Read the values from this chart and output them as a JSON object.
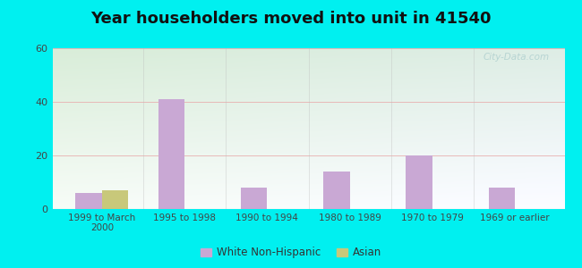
{
  "title": "Year householders moved into unit in 41540",
  "categories": [
    "1999 to March\n2000",
    "1995 to 1998",
    "1990 to 1994",
    "1980 to 1989",
    "1970 to 1979",
    "1969 or earlier"
  ],
  "white_non_hispanic": [
    6,
    41,
    8,
    14,
    20,
    8
  ],
  "asian": [
    7,
    0,
    0,
    0,
    0,
    0
  ],
  "white_color": "#c9a8d4",
  "asian_color": "#c8c87a",
  "ylim": [
    0,
    60
  ],
  "yticks": [
    0,
    20,
    40,
    60
  ],
  "bg_outer": "#00f0f0",
  "bg_inner_left": "#d8f0d0",
  "bg_inner_right": "#e8f8f8",
  "grid_color": "#dda0a0",
  "bar_width": 0.32,
  "legend_labels": [
    "White Non-Hispanic",
    "Asian"
  ],
  "watermark": "City-Data.com",
  "title_fontsize": 13,
  "tick_fontsize": 7.5,
  "legend_fontsize": 8.5
}
